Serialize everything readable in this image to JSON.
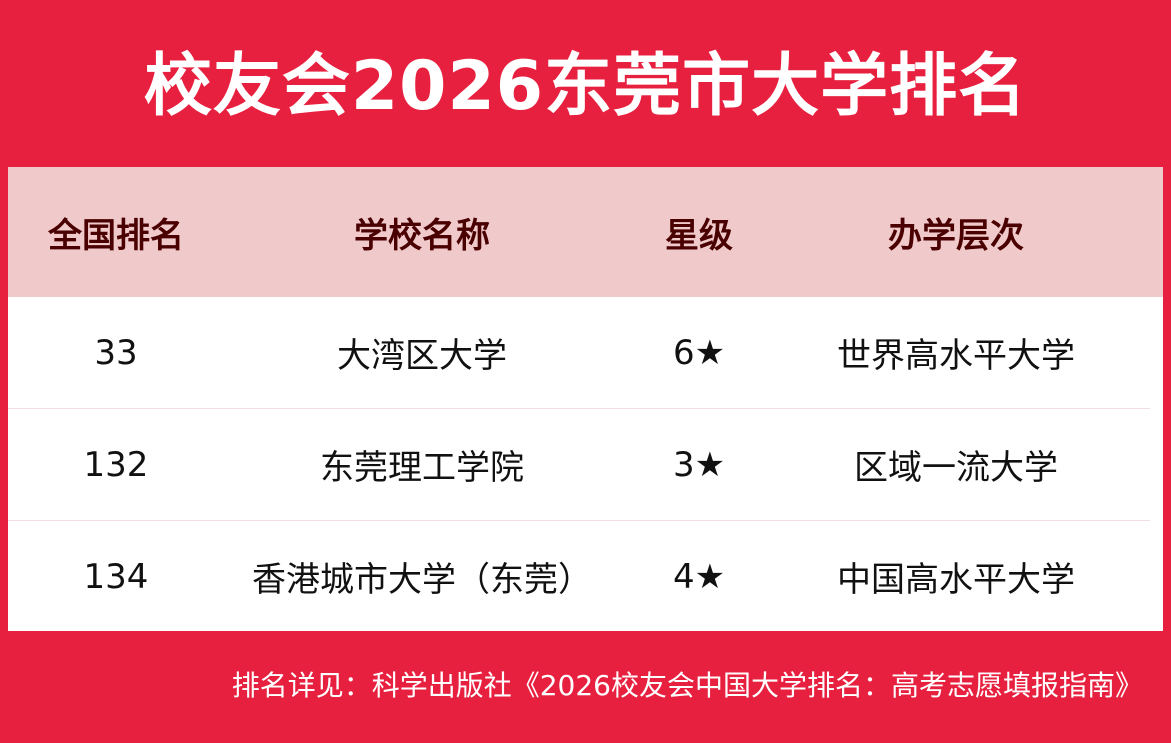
{
  "title": "校友会2026东莞市大学排名",
  "headers": [
    "全国排名",
    "学校名称",
    "星级",
    "办学层次"
  ],
  "rows": [
    {
      "rank": "33",
      "name": "大湾区大学",
      "stars": "6★",
      "level": "世界高水平大学"
    },
    {
      "rank": "132",
      "name": "东莞理工学院",
      "stars": "3★",
      "level": "区域一流大学"
    },
    {
      "rank": "134",
      "name": "香港城市大学（东莞）",
      "stars": "4★",
      "level": "中国高水平大学"
    }
  ],
  "footer": "排名详见：科学出版社《2026校友会中国大学排名：高考志愿填报指南》",
  "colors": {
    "background": "#e8203f",
    "header_bg": "#f0c9ca",
    "header_text": "#4a0000"
  }
}
